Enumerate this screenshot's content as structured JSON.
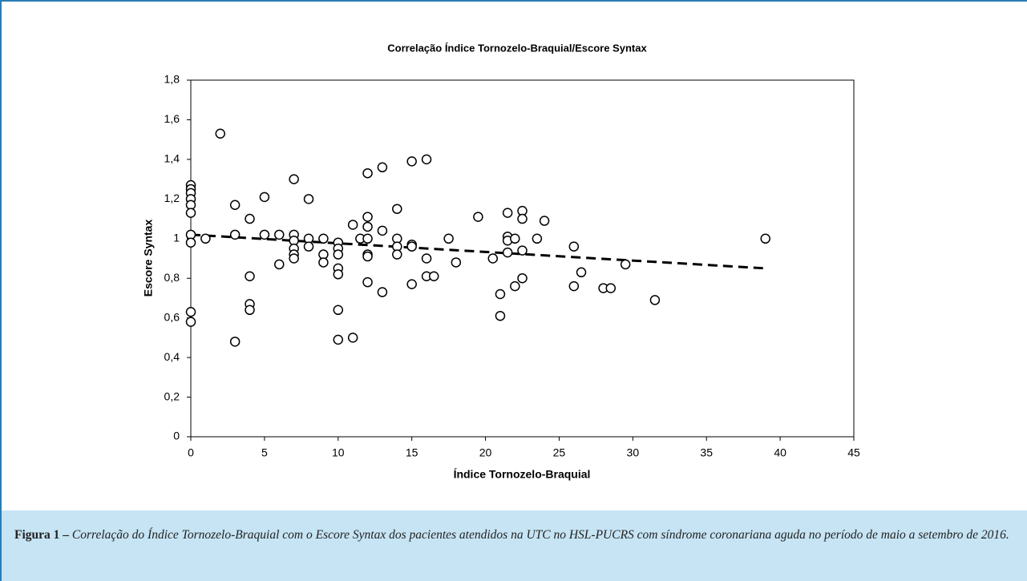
{
  "chart_data": {
    "type": "scatter",
    "title": "Correlação Índice Tornozelo-Braquial/Escore Syntax",
    "x_label": "Índice Tornozelo-Braquial",
    "y_label": "Escore Syntax",
    "color": "#000000",
    "x": [
      0,
      0,
      0,
      0,
      0,
      0,
      0,
      0,
      0,
      0,
      1,
      2,
      3,
      3,
      3,
      4,
      4,
      4,
      4,
      5,
      5,
      6,
      6,
      7,
      7,
      7,
      7,
      7,
      7,
      8,
      8,
      8,
      9,
      9,
      9,
      10,
      10,
      10,
      10,
      10,
      10,
      10,
      11,
      11,
      11.5,
      12,
      12,
      12,
      12,
      12,
      12,
      12,
      13,
      13,
      13,
      14,
      14,
      14,
      14,
      15,
      15,
      15,
      15,
      16,
      16,
      16,
      16.5,
      17.5,
      18,
      19.5,
      20.5,
      21,
      21,
      21.5,
      21.5,
      21.5,
      21.5,
      22,
      22,
      22.5,
      22.5,
      22.5,
      22.5,
      23.5,
      24,
      26,
      26,
      26.5,
      28,
      28.5,
      29.5,
      31.5,
      39
    ],
    "values": [
      1.27,
      1.25,
      1.23,
      1.2,
      1.17,
      1.13,
      1.02,
      0.98,
      0.63,
      0.58,
      1,
      1.53,
      1.17,
      1.02,
      0.48,
      1.1,
      0.81,
      0.67,
      0.64,
      1.21,
      1.02,
      1.02,
      0.87,
      1.3,
      1.02,
      0.99,
      0.95,
      0.92,
      0.9,
      1.2,
      1,
      0.96,
      1,
      0.92,
      0.88,
      0.98,
      0.95,
      0.92,
      0.85,
      0.82,
      0.64,
      0.49,
      1.07,
      0.5,
      1,
      1.33,
      1.11,
      1.06,
      1,
      0.92,
      0.91,
      0.78,
      1.36,
      1.04,
      0.73,
      1.15,
      1,
      0.96,
      0.92,
      1.39,
      0.97,
      0.96,
      0.77,
      1.4,
      0.9,
      0.81,
      0.81,
      1,
      0.88,
      1.11,
      0.9,
      0.72,
      0.61,
      1.13,
      1.01,
      0.99,
      0.93,
      1,
      0.76,
      1.14,
      1.1,
      0.94,
      0.8,
      1,
      1.09,
      0.96,
      0.76,
      0.83,
      0.75,
      0.75,
      0.87,
      0.69,
      1
    ],
    "trendline": {
      "x": [
        0,
        39
      ],
      "y": [
        1.02,
        0.85
      ]
    },
    "xlim": [
      0,
      45
    ],
    "xticks": [
      0,
      5,
      10,
      15,
      20,
      25,
      30,
      35,
      40,
      45
    ],
    "ylim": [
      0,
      1.8
    ],
    "yticks": [
      0,
      {
        "value": 0.2,
        "label": "0,2"
      },
      {
        "value": 0.4,
        "label": "0,4"
      },
      {
        "value": 0.6,
        "label": "0,6"
      },
      {
        "value": 0.8,
        "label": "0,8"
      },
      1,
      {
        "value": 1.2,
        "label": "1,2"
      },
      {
        "value": 1.4,
        "label": "1,4"
      },
      {
        "value": 1.6,
        "label": "1,6"
      },
      {
        "value": 1.8,
        "label": "1,8"
      }
    ],
    "grid": false
  },
  "figure": {
    "label": "Figura 1 –",
    "caption": "Correlação do Índice Tornozelo-Braquial com o Escore Syntax dos pacientes atendidos na UTC no HSL-PUCRS com síndrome coronariana aguda no período de maio a setembro de 2016."
  }
}
